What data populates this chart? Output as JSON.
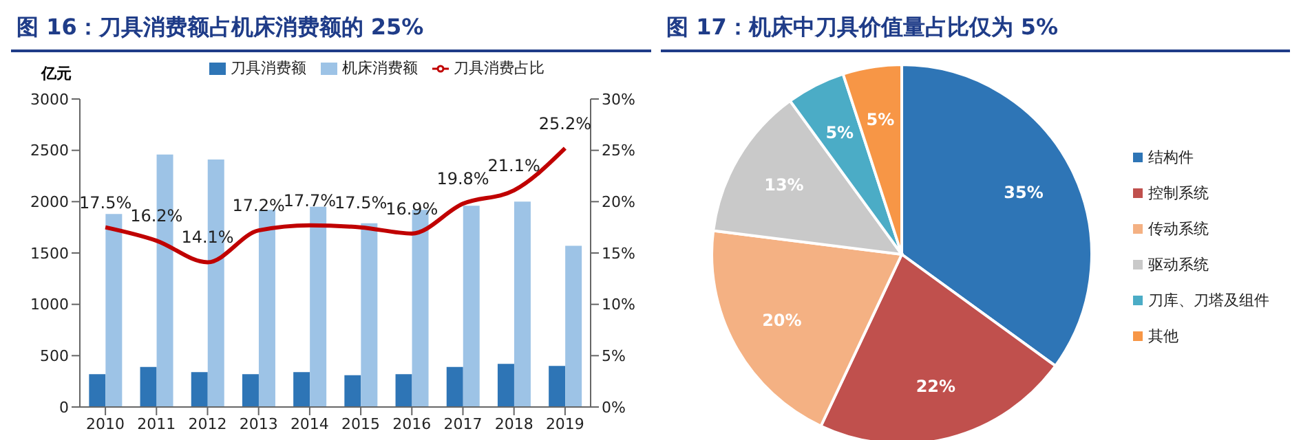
{
  "chart_data": [
    {
      "type": "bar",
      "title": "图 16：刀具消费额占机床消费额的 25%",
      "ylabel": "亿元",
      "categories": [
        "2010",
        "2011",
        "2012",
        "2013",
        "2014",
        "2015",
        "2016",
        "2017",
        "2018",
        "2019"
      ],
      "series": [
        {
          "name": "刀具消费额",
          "color": "#2e75b6",
          "values": [
            320,
            390,
            340,
            320,
            340,
            310,
            320,
            390,
            420,
            400
          ]
        },
        {
          "name": "机床消费额",
          "color": "#9dc3e6",
          "values": [
            1880,
            2460,
            2410,
            1920,
            1950,
            1790,
            1920,
            1960,
            2000,
            1570
          ]
        },
        {
          "name": "刀具消费占比",
          "type": "line",
          "axis": "y2",
          "color": "#c00000",
          "values": [
            17.5,
            16.2,
            14.1,
            17.2,
            17.7,
            17.5,
            16.9,
            19.8,
            21.1,
            25.2
          ],
          "value_labels": [
            "17.5%",
            "16.2%",
            "14.1%",
            "17.2%",
            "17.7%",
            "17.5%",
            "16.9%",
            "19.8%",
            "21.1%",
            "25.2%"
          ]
        }
      ],
      "ylim": [
        0,
        3000
      ],
      "yticks": [
        0,
        500,
        1000,
        1500,
        2000,
        2500,
        3000
      ],
      "y2lim": [
        0,
        30
      ],
      "y2ticks": [
        {
          "value": 0,
          "label": "0%"
        },
        {
          "value": 5,
          "label": "5%"
        },
        {
          "value": 10,
          "label": "10%"
        },
        {
          "value": 15,
          "label": "15%"
        },
        {
          "value": 20,
          "label": "20%"
        },
        {
          "value": 25,
          "label": "25%"
        },
        {
          "value": 30,
          "label": "30%"
        }
      ],
      "legend": "top",
      "marker": "none"
    },
    {
      "type": "pie",
      "title": "图 17：机床中刀具价值量占比仅为 5%",
      "categories": [
        "结构件",
        "控制系统",
        "传动系统",
        "驱动系统",
        "刀库、刀塔及组件",
        "其他"
      ],
      "values": [
        35,
        22,
        20,
        13,
        5,
        5
      ],
      "colors": [
        "#2e75b6",
        "#c0504d",
        "#f4b183",
        "#c9c9c9",
        "#4bacc6",
        "#f79646"
      ],
      "value_labels": [
        "35%",
        "22%",
        "20%",
        "13%",
        "5%",
        "5%"
      ],
      "legend": "right"
    }
  ]
}
